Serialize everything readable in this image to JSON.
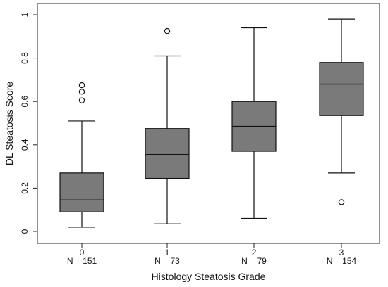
{
  "chart_data": {
    "type": "box",
    "title": "",
    "xlabel": "Histology Steatosis Grade",
    "ylabel": "DL Steatosis Score",
    "ylim": [
      0,
      1
    ],
    "yticks": [
      0,
      0.2,
      0.4,
      0.6,
      0.8,
      1
    ],
    "ytick_labels": [
      "0",
      "0.2",
      "0.4",
      "0.6",
      "0.8",
      "1"
    ],
    "grid": false,
    "categories": [
      "0",
      "1",
      "2",
      "3"
    ],
    "counts": [
      "N = 151",
      "N = 73",
      "N = 79",
      "N = 154"
    ],
    "box_color": "#7a7a7a",
    "boxes": [
      {
        "category": "0",
        "whisker_low": 0.02,
        "q1": 0.09,
        "median": 0.145,
        "q3": 0.27,
        "whisker_high": 0.51,
        "outliers": [
          0.605,
          0.645,
          0.675
        ]
      },
      {
        "category": "1",
        "whisker_low": 0.035,
        "q1": 0.245,
        "median": 0.355,
        "q3": 0.475,
        "whisker_high": 0.81,
        "outliers": [
          0.925
        ]
      },
      {
        "category": "2",
        "whisker_low": 0.06,
        "q1": 0.37,
        "median": 0.485,
        "q3": 0.6,
        "whisker_high": 0.94,
        "outliers": []
      },
      {
        "category": "3",
        "whisker_low": 0.27,
        "q1": 0.535,
        "median": 0.68,
        "q3": 0.78,
        "whisker_high": 0.98,
        "outliers": [
          0.135
        ]
      }
    ]
  }
}
